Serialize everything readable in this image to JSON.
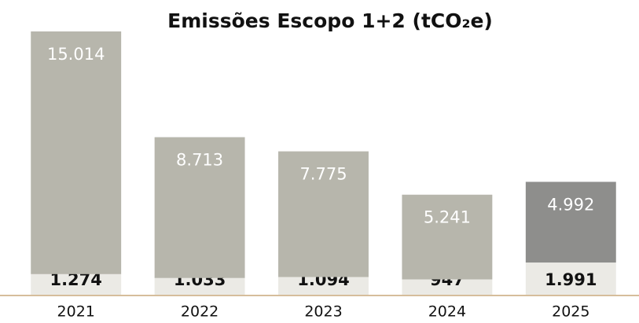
{
  "chart_data": {
    "type": "stacked_bar",
    "title": "Emissões Escopo 1+2 (tCO₂e)",
    "categories": [
      "2021",
      "2022",
      "2023",
      "2024",
      "2025"
    ],
    "series": [
      {
        "color": "#ebeae5",
        "values": [
          1274,
          1033,
          1094,
          947,
          1991
        ],
        "value_labels": [
          "1.274",
          "1.033",
          "1.094",
          "947",
          "1.991"
        ]
      },
      {
        "colors": [
          "#b7b6ac",
          "#b7b6ac",
          "#b7b6ac",
          "#b7b6ac",
          "#8e8e8c"
        ],
        "values": [
          15014,
          8713,
          7775,
          5241,
          4992
        ],
        "value_labels": [
          "15.014",
          "8.713",
          "7.775",
          "5.241",
          "4.992"
        ]
      }
    ],
    "axis_color": "#c9a77a"
  }
}
